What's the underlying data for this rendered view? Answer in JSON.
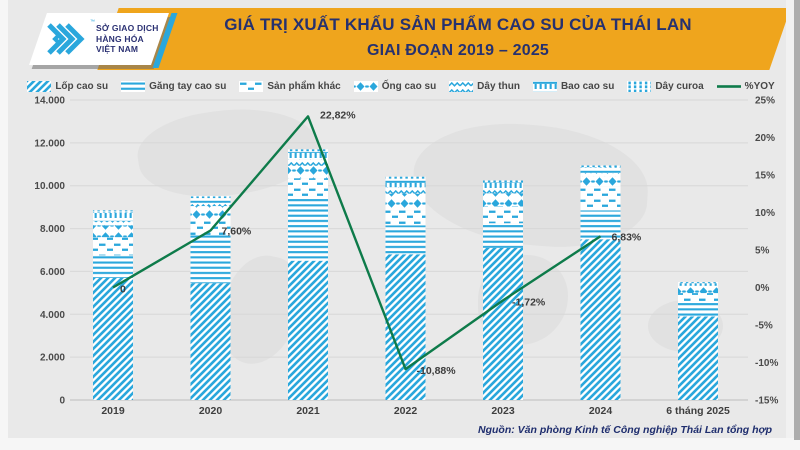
{
  "header": {
    "logo": {
      "lines": [
        "SỞ GIAO DỊCH",
        "HÀNG HÓA",
        "VIỆT NAM"
      ],
      "trademark": "™"
    },
    "title_line1": "GIÁ TRỊ XUẤT KHẨU SẢN PHẨM CAO SU CỦA THÁI LAN",
    "title_line2": "GIAI ĐOẠN 2019 – 2025"
  },
  "colors": {
    "banner_gold": "#efa51d",
    "title_navy": "#26316f",
    "bar_cyan": "#2aa7dc",
    "yoy_green": "#0e7b4a",
    "axis_text": "#4a4a4a",
    "grid_line": "#d7d7d7"
  },
  "chart_data": {
    "type": "bar",
    "subtype": "stacked-bars-with-line",
    "categories": [
      "2019",
      "2020",
      "2021",
      "2022",
      "2023",
      "2024",
      "6 tháng 2025"
    ],
    "series": [
      {
        "name": "Lốp cao su",
        "pattern": "diag",
        "values": [
          5700,
          5450,
          6500,
          6800,
          7100,
          7500,
          3900
        ]
      },
      {
        "name": "Găng tay cao su",
        "pattern": "hlines",
        "values": [
          1050,
          2250,
          3000,
          1350,
          1150,
          1350,
          700
        ]
      },
      {
        "name": "Sản phẩm khác",
        "pattern": "dashes",
        "values": [
          850,
          700,
          850,
          700,
          780,
          1100,
          390
        ]
      },
      {
        "name": "Ống cao su",
        "pattern": "diamonds",
        "values": [
          550,
          650,
          580,
          780,
          620,
          500,
          260
        ]
      },
      {
        "name": "Dây thun",
        "pattern": "wavy",
        "values": [
          200,
          150,
          300,
          300,
          180,
          150,
          80
        ]
      },
      {
        "name": "Bao cao su",
        "pattern": "tbars",
        "values": [
          380,
          223,
          350,
          400,
          330,
          250,
          120
        ]
      },
      {
        "name": "Dây curoa",
        "pattern": "grid",
        "values": [
          120,
          100,
          116,
          93,
          84,
          94,
          50
        ]
      }
    ],
    "bar_totals": [
      8850,
      9523,
      11696,
      10423,
      10244,
      10944,
      5500
    ],
    "line_series": {
      "name": "%YOY",
      "values": [
        0,
        7.6,
        22.82,
        -10.88,
        -1.72,
        6.83
      ],
      "labels": [
        "0",
        "7,60%",
        "22,82%",
        "-10,88%",
        "-1,72%",
        "6,83%"
      ]
    },
    "y_left": {
      "min": 0,
      "max": 14000,
      "step": 2000,
      "ticks": [
        "14.000",
        "12.000",
        "10.000",
        "8.000",
        "6.000",
        "4.000",
        "2.000",
        "0"
      ]
    },
    "y_right": {
      "min": -15,
      "max": 25,
      "step": 5,
      "ticks": [
        "25%",
        "20%",
        "15%",
        "10%",
        "5%",
        "0%",
        "-5%",
        "-10%",
        "-15%"
      ]
    },
    "grid": true,
    "legend_position": "top"
  },
  "footer": {
    "source": "Nguồn: Văn phòng Kinh tế Công nghiệp Thái Lan tổng hợp"
  }
}
